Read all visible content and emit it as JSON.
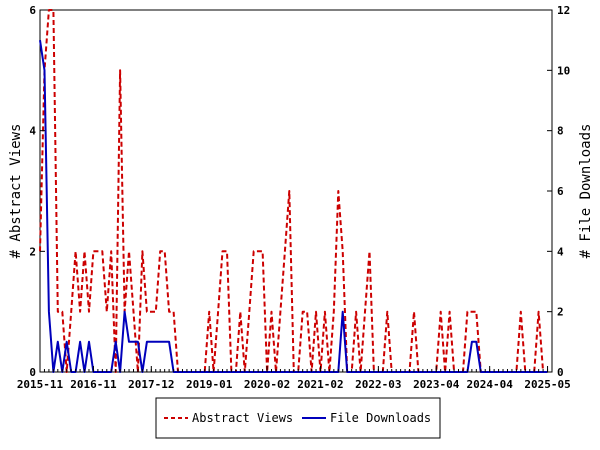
{
  "chart_data": {
    "type": "line",
    "title": "",
    "ylabel_left": "# Abstract Views",
    "ylabel_right": "# File Downloads",
    "xlim": [
      "2015-11-01",
      "2025-05-31"
    ],
    "ylim_left": [
      0,
      6
    ],
    "ylim_right": [
      0,
      12
    ],
    "yticks_left": [
      "0",
      "2",
      "4",
      "6"
    ],
    "yticks_right": [
      "0",
      "2",
      "4",
      "6",
      "8",
      "10",
      "12"
    ],
    "xtick_labels": [
      "2015-11",
      "2016-11",
      "2017-12",
      "2019-01",
      "2020-02",
      "2021-02",
      "2022-03",
      "2023-04",
      "2024-04",
      "2025-05"
    ],
    "legend_position": "bottom-center",
    "grid": false,
    "series": [
      {
        "name": "Abstract Views",
        "axis": "left",
        "color": "#cc0000",
        "style": "dashed",
        "points": [
          [
            "2015-11",
            2
          ],
          [
            "2015-12",
            5
          ],
          [
            "2016-01",
            6
          ],
          [
            "2016-02",
            6
          ],
          [
            "2016-03",
            1
          ],
          [
            "2016-04",
            1
          ],
          [
            "2016-05",
            0
          ],
          [
            "2016-06",
            1
          ],
          [
            "2016-07",
            2
          ],
          [
            "2016-08",
            1
          ],
          [
            "2016-09",
            2
          ],
          [
            "2016-10",
            1
          ],
          [
            "2016-11",
            2
          ],
          [
            "2016-12",
            2
          ],
          [
            "2017-01",
            2
          ],
          [
            "2017-02",
            1
          ],
          [
            "2017-03",
            2
          ],
          [
            "2017-04",
            0
          ],
          [
            "2017-05",
            5
          ],
          [
            "2017-06",
            1
          ],
          [
            "2017-07",
            2
          ],
          [
            "2017-08",
            1
          ],
          [
            "2017-09",
            0
          ],
          [
            "2017-10",
            2
          ],
          [
            "2017-11",
            1
          ],
          [
            "2017-12",
            1
          ],
          [
            "2018-01",
            1
          ],
          [
            "2018-02",
            2
          ],
          [
            "2018-03",
            2
          ],
          [
            "2018-04",
            1
          ],
          [
            "2018-05",
            1
          ],
          [
            "2018-06",
            0
          ],
          [
            "2018-07",
            0
          ],
          [
            "2018-08",
            0
          ],
          [
            "2018-09",
            0
          ],
          [
            "2018-10",
            0
          ],
          [
            "2018-11",
            0
          ],
          [
            "2018-12",
            0
          ],
          [
            "2019-01",
            1
          ],
          [
            "2019-02",
            0
          ],
          [
            "2019-03",
            1
          ],
          [
            "2019-04",
            2
          ],
          [
            "2019-05",
            2
          ],
          [
            "2019-06",
            0
          ],
          [
            "2019-07",
            0
          ],
          [
            "2019-08",
            1
          ],
          [
            "2019-09",
            0
          ],
          [
            "2019-10",
            1
          ],
          [
            "2019-11",
            2
          ],
          [
            "2019-12",
            2
          ],
          [
            "2020-01",
            2
          ],
          [
            "2020-02",
            0
          ],
          [
            "2020-03",
            1
          ],
          [
            "2020-04",
            0
          ],
          [
            "2020-05",
            1
          ],
          [
            "2020-06",
            2
          ],
          [
            "2020-07",
            3
          ],
          [
            "2020-08",
            0
          ],
          [
            "2020-09",
            0
          ],
          [
            "2020-10",
            1
          ],
          [
            "2020-11",
            1
          ],
          [
            "2020-12",
            0
          ],
          [
            "2021-01",
            1
          ],
          [
            "2021-02",
            0
          ],
          [
            "2021-03",
            1
          ],
          [
            "2021-04",
            0
          ],
          [
            "2021-05",
            1
          ],
          [
            "2021-06",
            3
          ],
          [
            "2021-07",
            2
          ],
          [
            "2021-08",
            0
          ],
          [
            "2021-09",
            0
          ],
          [
            "2021-10",
            1
          ],
          [
            "2021-11",
            0
          ],
          [
            "2021-12",
            1
          ],
          [
            "2022-01",
            2
          ],
          [
            "2022-02",
            0
          ],
          [
            "2022-03",
            0
          ],
          [
            "2022-04",
            0
          ],
          [
            "2022-05",
            1
          ],
          [
            "2022-06",
            0
          ],
          [
            "2022-07",
            0
          ],
          [
            "2022-08",
            0
          ],
          [
            "2022-09",
            0
          ],
          [
            "2022-10",
            0
          ],
          [
            "2022-11",
            1
          ],
          [
            "2022-12",
            0
          ],
          [
            "2023-01",
            0
          ],
          [
            "2023-02",
            0
          ],
          [
            "2023-03",
            0
          ],
          [
            "2023-04",
            0
          ],
          [
            "2023-05",
            1
          ],
          [
            "2023-06",
            0
          ],
          [
            "2023-07",
            1
          ],
          [
            "2023-08",
            0
          ],
          [
            "2023-09",
            0
          ],
          [
            "2023-10",
            0
          ],
          [
            "2023-11",
            1
          ],
          [
            "2023-12",
            1
          ],
          [
            "2024-01",
            1
          ],
          [
            "2024-02",
            0
          ],
          [
            "2024-03",
            0
          ],
          [
            "2024-04",
            0
          ],
          [
            "2024-05",
            0
          ],
          [
            "2024-06",
            0
          ],
          [
            "2024-07",
            0
          ],
          [
            "2024-08",
            0
          ],
          [
            "2024-09",
            0
          ],
          [
            "2024-10",
            0
          ],
          [
            "2024-11",
            1
          ],
          [
            "2024-12",
            0
          ],
          [
            "2025-01",
            0
          ],
          [
            "2025-02",
            0
          ],
          [
            "2025-03",
            1
          ],
          [
            "2025-04",
            0
          ],
          [
            "2025-05",
            0
          ]
        ]
      },
      {
        "name": "File Downloads",
        "axis": "right",
        "color": "#0000bb",
        "style": "solid",
        "points": [
          [
            "2015-11",
            11
          ],
          [
            "2015-12",
            10
          ],
          [
            "2016-01",
            2
          ],
          [
            "2016-02",
            0
          ],
          [
            "2016-03",
            1
          ],
          [
            "2016-04",
            0
          ],
          [
            "2016-05",
            1
          ],
          [
            "2016-06",
            0
          ],
          [
            "2016-07",
            0
          ],
          [
            "2016-08",
            1
          ],
          [
            "2016-09",
            0
          ],
          [
            "2016-10",
            1
          ],
          [
            "2016-11",
            0
          ],
          [
            "2016-12",
            0
          ],
          [
            "2017-01",
            0
          ],
          [
            "2017-02",
            0
          ],
          [
            "2017-03",
            0
          ],
          [
            "2017-04",
            1
          ],
          [
            "2017-05",
            0
          ],
          [
            "2017-06",
            2
          ],
          [
            "2017-07",
            1
          ],
          [
            "2017-08",
            1
          ],
          [
            "2017-09",
            1
          ],
          [
            "2017-10",
            0
          ],
          [
            "2017-11",
            1
          ],
          [
            "2017-12",
            1
          ],
          [
            "2018-01",
            1
          ],
          [
            "2018-02",
            1
          ],
          [
            "2018-03",
            1
          ],
          [
            "2018-04",
            1
          ],
          [
            "2018-05",
            0
          ],
          [
            "2018-06",
            0
          ],
          [
            "2018-07",
            0
          ],
          [
            "2018-08",
            0
          ],
          [
            "2018-09",
            0
          ],
          [
            "2018-10",
            0
          ],
          [
            "2018-11",
            0
          ],
          [
            "2018-12",
            0
          ],
          [
            "2019-01",
            0
          ],
          [
            "2019-02",
            0
          ],
          [
            "2019-03",
            0
          ],
          [
            "2019-04",
            0
          ],
          [
            "2019-05",
            0
          ],
          [
            "2019-06",
            0
          ],
          [
            "2019-07",
            0
          ],
          [
            "2019-08",
            0
          ],
          [
            "2019-09",
            0
          ],
          [
            "2019-10",
            0
          ],
          [
            "2019-11",
            0
          ],
          [
            "2019-12",
            0
          ],
          [
            "2020-01",
            0
          ],
          [
            "2020-02",
            0
          ],
          [
            "2020-03",
            0
          ],
          [
            "2020-04",
            0
          ],
          [
            "2020-05",
            0
          ],
          [
            "2020-06",
            0
          ],
          [
            "2020-07",
            0
          ],
          [
            "2020-08",
            0
          ],
          [
            "2020-09",
            0
          ],
          [
            "2020-10",
            0
          ],
          [
            "2020-11",
            0
          ],
          [
            "2020-12",
            0
          ],
          [
            "2021-01",
            0
          ],
          [
            "2021-02",
            0
          ],
          [
            "2021-03",
            0
          ],
          [
            "2021-04",
            0
          ],
          [
            "2021-05",
            0
          ],
          [
            "2021-06",
            0
          ],
          [
            "2021-07",
            2
          ],
          [
            "2021-08",
            0
          ],
          [
            "2021-09",
            0
          ],
          [
            "2021-10",
            0
          ],
          [
            "2021-11",
            0
          ],
          [
            "2021-12",
            0
          ],
          [
            "2022-01",
            0
          ],
          [
            "2022-02",
            0
          ],
          [
            "2022-03",
            0
          ],
          [
            "2022-04",
            0
          ],
          [
            "2022-05",
            0
          ],
          [
            "2022-06",
            0
          ],
          [
            "2022-07",
            0
          ],
          [
            "2022-08",
            0
          ],
          [
            "2022-09",
            0
          ],
          [
            "2022-10",
            0
          ],
          [
            "2022-11",
            0
          ],
          [
            "2022-12",
            0
          ],
          [
            "2023-01",
            0
          ],
          [
            "2023-02",
            0
          ],
          [
            "2023-03",
            0
          ],
          [
            "2023-04",
            0
          ],
          [
            "2023-05",
            0
          ],
          [
            "2023-06",
            0
          ],
          [
            "2023-07",
            0
          ],
          [
            "2023-08",
            0
          ],
          [
            "2023-09",
            0
          ],
          [
            "2023-10",
            0
          ],
          [
            "2023-11",
            0
          ],
          [
            "2023-12",
            1
          ],
          [
            "2024-01",
            1
          ],
          [
            "2024-02",
            0
          ],
          [
            "2024-03",
            0
          ],
          [
            "2024-04",
            0
          ],
          [
            "2024-05",
            0
          ],
          [
            "2024-06",
            0
          ],
          [
            "2024-07",
            0
          ],
          [
            "2024-08",
            0
          ],
          [
            "2024-09",
            0
          ],
          [
            "2024-10",
            0
          ],
          [
            "2024-11",
            0
          ],
          [
            "2024-12",
            0
          ],
          [
            "2025-01",
            0
          ],
          [
            "2025-02",
            0
          ],
          [
            "2025-03",
            0
          ],
          [
            "2025-04",
            0
          ],
          [
            "2025-05",
            0
          ]
        ]
      }
    ]
  }
}
